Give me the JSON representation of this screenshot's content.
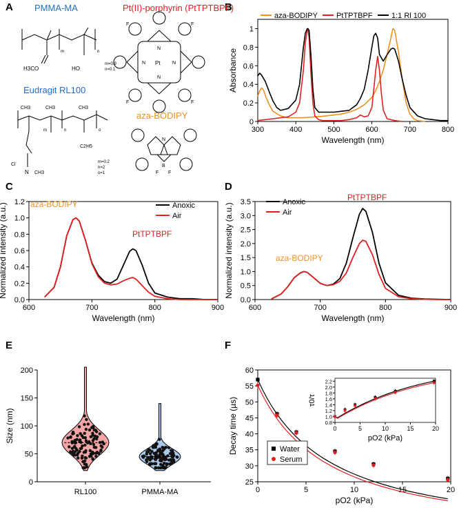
{
  "figure": {
    "panel_labels": [
      "A",
      "B",
      "C",
      "D",
      "E",
      "F"
    ]
  },
  "panel_a": {
    "pmma_title": "PMMA-MA",
    "pmma_ester": "H3CO",
    "pmma_acid": "HO",
    "pmma_sub_m": "m",
    "pmma_sub_n": "n",
    "pmma_ratio_m": "m=0.9",
    "pmma_ratio_n": "n=0.1",
    "eudragit_title": "Eudragit RL100",
    "eud_ch3": "CH3",
    "eud_cl": "Cl",
    "eud_ammonium_n": "N",
    "eud_ammonium_ch3": "CH3",
    "eud_ethyl": "C2H5",
    "eud_sub_m": "m",
    "eud_sub_n": "n",
    "eud_sub_o": "o",
    "eud_ratio_m": "m=0.2",
    "eud_ratio_n": "n=2",
    "eud_ratio_o": "o=1",
    "porphyrin_title": "Pt(II)-porphyrin (PtTPTBPF)",
    "porphyrin_metal": "Pt",
    "porphyrin_n": "N",
    "porphyrin_f": "F",
    "bodipy_title": "aza-BODIPY",
    "bodipy_b": "B",
    "bodipy_n": "N",
    "bodipy_f": "F"
  },
  "colors": {
    "aza": "#f0901e",
    "pt": "#e02020",
    "black": "#000000",
    "water": "#000000",
    "serum": "#e02020",
    "blue_label": "#1f6fc4",
    "red_label": "#e02020",
    "rl100_fill": "#f4a6a6",
    "pmma_fill": "#a9c8ec"
  },
  "chart_data": [
    {
      "panel": "B",
      "type": "line",
      "xlabel": "Wavelength (nm)",
      "ylabel": "Absorbance",
      "xlim": [
        300,
        800
      ],
      "ylim": [
        0,
        1.1
      ],
      "xticks": [
        300,
        400,
        500,
        600,
        700,
        800
      ],
      "yticks": [
        0,
        0.2,
        0.4,
        0.6,
        0.8,
        1
      ],
      "ytick_labels": [
        "0",
        "0.2",
        "0.4",
        "0.6",
        "0.8",
        "1"
      ],
      "legend": "top",
      "series": [
        {
          "name": "aza-BODIPY",
          "color": "#f0901e",
          "x": [
            300,
            305,
            310,
            315,
            320,
            330,
            340,
            360,
            380,
            400,
            420,
            450,
            480,
            500,
            520,
            540,
            560,
            580,
            600,
            610,
            620,
            630,
            640,
            650,
            655,
            660,
            670,
            680,
            690,
            700,
            710,
            720,
            740
          ],
          "y": [
            0.27,
            0.33,
            0.36,
            0.34,
            0.28,
            0.18,
            0.11,
            0.06,
            0.04,
            0.04,
            0.04,
            0.05,
            0.06,
            0.07,
            0.08,
            0.1,
            0.13,
            0.18,
            0.26,
            0.33,
            0.43,
            0.56,
            0.72,
            0.9,
            1.0,
            0.98,
            0.75,
            0.45,
            0.2,
            0.08,
            0.03,
            0.01,
            0.0
          ]
        },
        {
          "name": "PtTPTBPF",
          "color": "#e02020",
          "x": [
            300,
            320,
            340,
            360,
            380,
            400,
            410,
            420,
            425,
            430,
            432,
            435,
            440,
            445,
            450,
            460,
            470,
            480,
            500,
            520,
            540,
            560,
            570,
            580,
            590,
            600,
            605,
            610,
            615,
            620,
            625,
            630,
            640,
            660,
            680
          ],
          "y": [
            0.01,
            0.02,
            0.03,
            0.04,
            0.05,
            0.1,
            0.2,
            0.55,
            0.85,
            0.98,
            1.0,
            0.9,
            0.5,
            0.2,
            0.06,
            0.02,
            0.01,
            0.01,
            0.01,
            0.01,
            0.02,
            0.04,
            0.07,
            0.05,
            0.06,
            0.15,
            0.35,
            0.55,
            0.7,
            0.55,
            0.3,
            0.12,
            0.03,
            0.01,
            0.0
          ]
        },
        {
          "name": "1:1 Rl 100",
          "color": "#000000",
          "x": [
            300,
            305,
            310,
            320,
            330,
            340,
            350,
            360,
            380,
            400,
            410,
            420,
            425,
            430,
            432,
            435,
            440,
            445,
            450,
            460,
            480,
            500,
            520,
            540,
            560,
            570,
            580,
            590,
            600,
            605,
            610,
            615,
            620,
            630,
            640,
            650,
            655,
            660,
            670,
            680,
            690,
            700,
            720,
            740,
            760,
            780,
            800
          ],
          "y": [
            0.49,
            0.52,
            0.5,
            0.43,
            0.32,
            0.22,
            0.15,
            0.12,
            0.14,
            0.23,
            0.4,
            0.8,
            0.95,
            1.0,
            1.0,
            0.98,
            0.7,
            0.35,
            0.15,
            0.1,
            0.1,
            0.1,
            0.11,
            0.12,
            0.18,
            0.25,
            0.35,
            0.55,
            0.8,
            0.92,
            0.95,
            0.9,
            0.72,
            0.65,
            0.72,
            0.78,
            0.79,
            0.78,
            0.65,
            0.45,
            0.28,
            0.15,
            0.06,
            0.03,
            0.02,
            0.01,
            0.01
          ]
        }
      ]
    },
    {
      "panel": "C",
      "type": "line",
      "xlabel": "Wavelength (nm)",
      "ylabel": "Normalized intensity (a.u.)",
      "xlim": [
        600,
        900
      ],
      "ylim": [
        0,
        1.2
      ],
      "xticks": [
        600,
        700,
        800,
        900
      ],
      "yticks": [
        0,
        0.2,
        0.4,
        0.6,
        0.8,
        1.0,
        1.2
      ],
      "ytick_labels": [
        "0.0",
        "0.2",
        "0.4",
        "0.6",
        "0.8",
        "1.0",
        "1.2"
      ],
      "annotations": [
        {
          "text": "aza-BODIPY",
          "color": "#f0901e"
        },
        {
          "text": "PtTPTBPF",
          "color": "#e02020"
        }
      ],
      "series": [
        {
          "name": "Anoxic",
          "color": "#000000",
          "x": [
            625,
            640,
            650,
            660,
            670,
            675,
            680,
            690,
            700,
            710,
            720,
            730,
            740,
            750,
            760,
            765,
            770,
            780,
            790,
            800,
            820,
            840,
            860,
            880,
            900
          ],
          "y": [
            0.03,
            0.15,
            0.4,
            0.78,
            0.98,
            1.0,
            0.96,
            0.72,
            0.45,
            0.3,
            0.22,
            0.2,
            0.25,
            0.42,
            0.59,
            0.62,
            0.6,
            0.42,
            0.2,
            0.08,
            0.03,
            0.01,
            0.01,
            0.0,
            0.0
          ]
        },
        {
          "name": "Air",
          "color": "#e02020",
          "x": [
            625,
            640,
            650,
            660,
            670,
            675,
            680,
            690,
            700,
            710,
            720,
            730,
            740,
            750,
            760,
            765,
            770,
            780,
            790,
            800,
            820,
            840,
            860,
            880,
            900
          ],
          "y": [
            0.03,
            0.15,
            0.4,
            0.78,
            0.98,
            1.0,
            0.96,
            0.72,
            0.44,
            0.28,
            0.2,
            0.18,
            0.19,
            0.23,
            0.26,
            0.27,
            0.25,
            0.17,
            0.09,
            0.04,
            0.01,
            0.0,
            0.0,
            0.0,
            0.0
          ]
        }
      ]
    },
    {
      "panel": "D",
      "type": "line",
      "xlabel": "Wavelength (nm)",
      "ylabel": "Normalized intensity (a.u.)",
      "xlim": [
        600,
        900
      ],
      "ylim": [
        0,
        3.5
      ],
      "xticks": [
        600,
        700,
        800,
        900
      ],
      "yticks": [
        0,
        0.5,
        1.0,
        1.5,
        2.0,
        2.5,
        3.0,
        3.5
      ],
      "ytick_labels": [
        "0.0",
        "0.5",
        "1.0",
        "1.5",
        "2.0",
        "2.5",
        "3.0",
        "3.5"
      ],
      "annotations": [
        {
          "text": "PtTPTBPF",
          "color": "#e02020"
        },
        {
          "text": "aza-BODIPY",
          "color": "#f0901e"
        }
      ],
      "series": [
        {
          "name": "Anoxic",
          "color": "#000000",
          "x": [
            625,
            640,
            650,
            660,
            670,
            675,
            680,
            690,
            700,
            710,
            720,
            730,
            740,
            750,
            760,
            765,
            770,
            780,
            790,
            800,
            820,
            840,
            860,
            880,
            900
          ],
          "y": [
            0.02,
            0.2,
            0.45,
            0.78,
            0.96,
            1.0,
            0.97,
            0.78,
            0.58,
            0.5,
            0.55,
            0.75,
            1.3,
            2.2,
            3.05,
            3.25,
            3.15,
            2.4,
            1.3,
            0.6,
            0.15,
            0.05,
            0.02,
            0.01,
            0.0
          ]
        },
        {
          "name": "Air",
          "color": "#e02020",
          "x": [
            625,
            640,
            650,
            660,
            670,
            675,
            680,
            690,
            700,
            710,
            720,
            730,
            740,
            750,
            760,
            765,
            770,
            780,
            790,
            800,
            820,
            840,
            860,
            880,
            900
          ],
          "y": [
            0.02,
            0.2,
            0.45,
            0.78,
            0.96,
            1.0,
            0.97,
            0.78,
            0.58,
            0.5,
            0.53,
            0.65,
            0.95,
            1.5,
            2.0,
            2.12,
            2.08,
            1.6,
            0.9,
            0.4,
            0.1,
            0.03,
            0.01,
            0.0,
            0.0
          ]
        }
      ]
    },
    {
      "panel": "E",
      "type": "violin",
      "ylabel": "Size (nm)",
      "ylim": [
        0,
        200
      ],
      "yticks": [
        0,
        50,
        100,
        150,
        200
      ],
      "categories": [
        "RL100",
        "PMMA-MA"
      ],
      "medians": [
        70,
        45
      ],
      "ranges": [
        [
          20,
          205
        ],
        [
          20,
          140
        ]
      ],
      "fills": [
        "#f4a6a6",
        "#a9c8ec"
      ]
    },
    {
      "panel": "F",
      "type": "scatter",
      "xlabel": "pO2 (kPa)",
      "ylabel": "Decay time (µs)",
      "xlim": [
        0,
        20
      ],
      "ylim": [
        25,
        60
      ],
      "xticks": [
        0,
        5,
        10,
        15,
        20
      ],
      "yticks": [
        25,
        30,
        35,
        40,
        45,
        50,
        55,
        60
      ],
      "series": [
        {
          "name": "Water",
          "marker": "square",
          "color": "#000000",
          "x": [
            0,
            2,
            4,
            8,
            12,
            19.7
          ],
          "y": [
            57,
            46.2,
            40.5,
            34.5,
            30.5,
            26.0
          ]
        },
        {
          "name": "Serum",
          "marker": "circle",
          "color": "#e02020",
          "x": [
            0,
            2,
            4,
            8,
            12,
            19.7
          ],
          "y": [
            55.2,
            45.8,
            40.3,
            34.2,
            30.2,
            25.6
          ]
        }
      ],
      "inset": {
        "xlabel": "pO2 (kPa)",
        "ylabel": "τ0/τ",
        "xlim": [
          0,
          20
        ],
        "ylim": [
          0.8,
          2.3
        ],
        "xticks": [
          0,
          5,
          10,
          15,
          20
        ],
        "yticks": [
          0.8,
          1.0,
          1.2,
          1.4,
          1.6,
          1.8,
          2.0,
          2.2
        ],
        "ytick_labels": [
          "0.8",
          "1.0",
          "1.2",
          "1.4",
          "1.6",
          "1.8",
          "2.0",
          "2.2"
        ],
        "series": [
          {
            "name": "Water",
            "marker": "square",
            "color": "#000000",
            "x": [
              0,
              2,
              4,
              8,
              12,
              19.7
            ],
            "y": [
              1.0,
              1.23,
              1.4,
              1.65,
              1.86,
              2.2
            ]
          },
          {
            "name": "Serum",
            "marker": "circle",
            "color": "#e02020",
            "x": [
              0,
              2,
              4,
              8,
              12,
              19.7
            ],
            "y": [
              1.0,
              1.2,
              1.37,
              1.61,
              1.82,
              2.15
            ]
          }
        ]
      }
    }
  ]
}
